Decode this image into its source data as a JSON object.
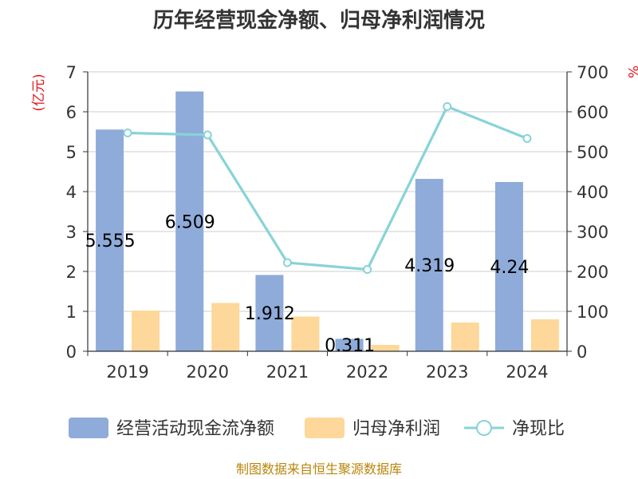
{
  "chart_data": {
    "type": "bar",
    "title": "历年经营现金净额、归母净利润情况",
    "categories": [
      "2019",
      "2020",
      "2021",
      "2022",
      "2023",
      "2024"
    ],
    "y_left": {
      "label": "(亿元)",
      "min": 0,
      "max": 7,
      "ticks": [
        0,
        1,
        2,
        3,
        4,
        5,
        6,
        7
      ]
    },
    "y_right": {
      "label": "%",
      "min": 0,
      "max": 700,
      "ticks": [
        0,
        100,
        200,
        300,
        400,
        500,
        600,
        700
      ]
    },
    "series": [
      {
        "name": "经营活动现金流净额",
        "type": "bar",
        "axis": "left",
        "color": "#8eabd9",
        "values": [
          5.555,
          6.509,
          1.912,
          0.311,
          4.319,
          4.24
        ],
        "labels": [
          "5.555",
          "6.509",
          "1.912",
          "0.311",
          "4.319",
          "4.24"
        ]
      },
      {
        "name": "归母净利润",
        "type": "bar",
        "axis": "left",
        "color": "#fdd89a",
        "values": [
          1.02,
          1.21,
          0.87,
          0.16,
          0.72,
          0.8
        ]
      },
      {
        "name": "净现比",
        "type": "line",
        "axis": "right",
        "color": "#88d3d8",
        "values": [
          547,
          542,
          222,
          205,
          613,
          533
        ]
      }
    ],
    "grid": true,
    "legend_position": "bottom"
  },
  "source": "制图数据来自恒生聚源数据库"
}
